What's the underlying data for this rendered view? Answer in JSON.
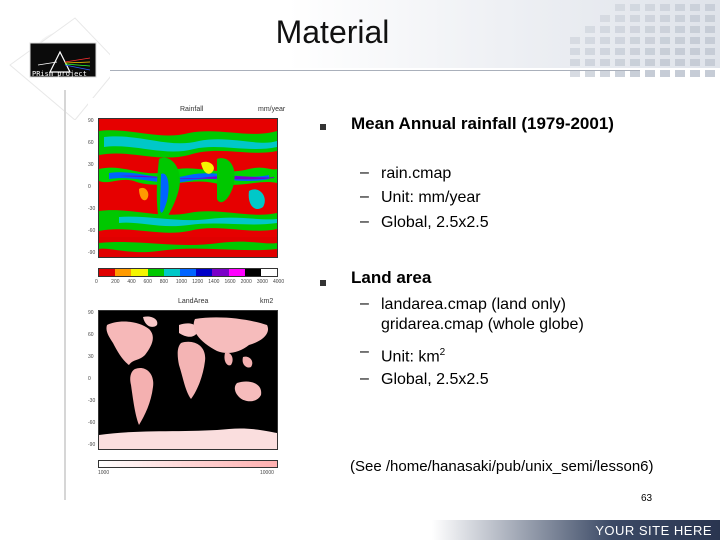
{
  "slide": {
    "title": "Material",
    "logo_text": "PRism project",
    "footer_text": "YOUR SITE HERE",
    "page_number": "63",
    "note": "(See /home/hanasaki/pub/unix_semi/lesson6)"
  },
  "bullets": [
    {
      "text": "Mean Annual rainfall (1979-2001)",
      "subs": [
        "rain.cmap",
        "Unit: mm/year",
        "Global, 2.5x2.5"
      ]
    },
    {
      "text": "Land area",
      "subs": [
        "landarea.cmap (land only) gridarea.cmap (whole globe)",
        "Unit: km",
        "Global, 2.5x2.5"
      ],
      "superscript": "2"
    }
  ],
  "figures": {
    "rain": {
      "title": "Rainfall",
      "unit": "mm/year",
      "lat_ticks": [
        "90",
        "60",
        "30",
        "0",
        "-30",
        "-60",
        "-90"
      ],
      "colorbar_labels": [
        "0",
        "200",
        "400",
        "600",
        "800",
        "1000",
        "1200",
        "1400",
        "1600",
        "2000",
        "3000",
        "4000"
      ],
      "colors": [
        "#e00000",
        "#ff9a00",
        "#f5f500",
        "#00c800",
        "#00c8c8",
        "#0064ff",
        "#0000c8",
        "#7a00c8",
        "#ff00ff",
        "#000000",
        "#ffffff"
      ]
    },
    "land": {
      "title": "LandArea",
      "unit": "km2",
      "colorbar_labels": [
        "1000",
        "10000"
      ]
    }
  }
}
